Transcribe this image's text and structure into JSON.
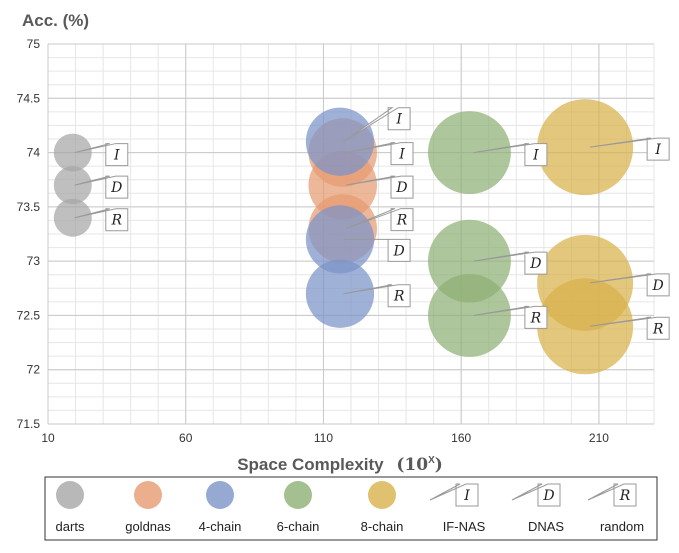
{
  "chart_data": {
    "type": "bubble",
    "title": "",
    "ylabel": "Acc. (%)",
    "xlabel_text": "Space Complexity",
    "xlabel_unit": "(10",
    "xlabel_sup": "X",
    "xlabel_close": ")",
    "xlim": [
      10,
      230
    ],
    "ylim": [
      71.5,
      75
    ],
    "xticks": [
      10,
      60,
      110,
      160,
      210
    ],
    "yticks": [
      71.5,
      72,
      72.5,
      73,
      73.5,
      74,
      74.5,
      75
    ],
    "grid": true,
    "legend_position": "bottom",
    "series": [
      {
        "name": "darts",
        "color": "#A6A6A6",
        "points": [
          {
            "x": 19,
            "y": 74.0,
            "label": "I"
          },
          {
            "x": 19,
            "y": 73.7,
            "label": "D"
          },
          {
            "x": 19,
            "y": 73.4,
            "label": "R"
          }
        ]
      },
      {
        "name": "goldnas",
        "color": "#E69B72",
        "points": [
          {
            "x": 117,
            "y": 74.0,
            "label": "I"
          },
          {
            "x": 117,
            "y": 73.7,
            "label": "D"
          },
          {
            "x": 117,
            "y": 73.3,
            "label": "R"
          }
        ]
      },
      {
        "name": "4-chain",
        "color": "#7A93C8",
        "points": [
          {
            "x": 116,
            "y": 74.1,
            "label": "I"
          },
          {
            "x": 116,
            "y": 73.2,
            "label": "D"
          },
          {
            "x": 116,
            "y": 72.7,
            "label": "R"
          }
        ]
      },
      {
        "name": "6-chain",
        "color": "#8FB074",
        "points": [
          {
            "x": 163,
            "y": 74.0,
            "label": "I"
          },
          {
            "x": 163,
            "y": 73.0,
            "label": "D"
          },
          {
            "x": 163,
            "y": 72.5,
            "label": "R"
          }
        ]
      },
      {
        "name": "8-chain",
        "color": "#D8B24B",
        "points": [
          {
            "x": 205,
            "y": 74.05,
            "label": "I"
          },
          {
            "x": 205,
            "y": 72.8,
            "label": "D"
          },
          {
            "x": 205,
            "y": 72.4,
            "label": "R"
          }
        ]
      }
    ],
    "legend": [
      {
        "name": "darts",
        "kind": "circle",
        "color": "#A6A6A6"
      },
      {
        "name": "goldnas",
        "kind": "circle",
        "color": "#E69B72"
      },
      {
        "name": "4-chain",
        "kind": "circle",
        "color": "#7A93C8"
      },
      {
        "name": "6-chain",
        "kind": "circle",
        "color": "#8FB074"
      },
      {
        "name": "8-chain",
        "kind": "circle",
        "color": "#D8B24B"
      },
      {
        "name": "IF-NAS",
        "kind": "callout",
        "letter": "I"
      },
      {
        "name": "DNAS",
        "kind": "callout",
        "letter": "D"
      },
      {
        "name": "random",
        "kind": "callout",
        "letter": "R"
      }
    ]
  }
}
